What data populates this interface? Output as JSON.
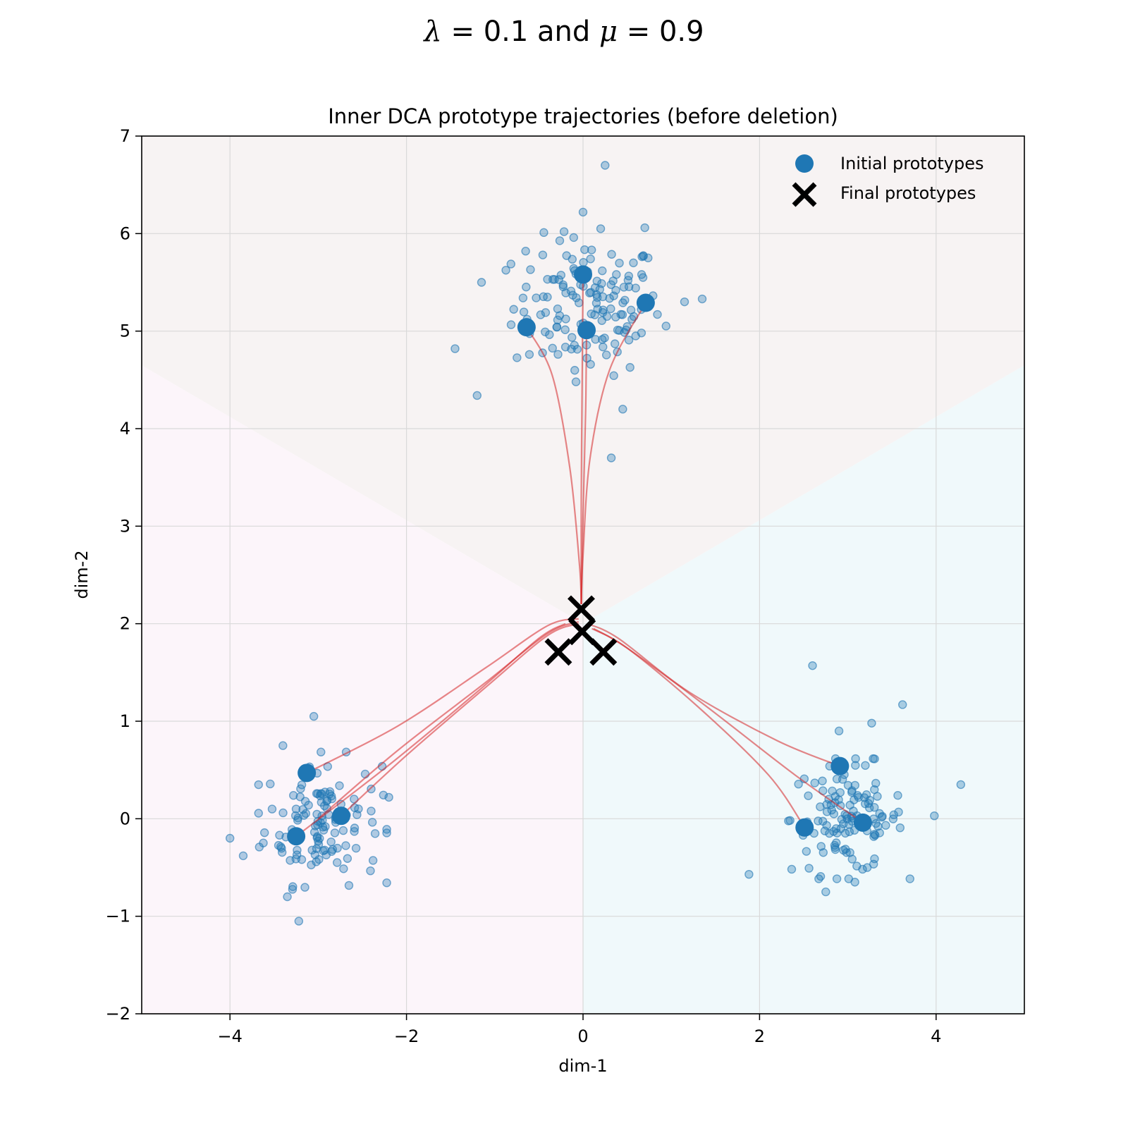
{
  "figure": {
    "suptitle": {
      "lambda_symbol": "λ",
      "lambda_value": "0.1",
      "connector": "and",
      "mu_symbol": "μ",
      "mu_value": "0.9"
    }
  },
  "chart_data": {
    "type": "scatter",
    "title": "Inner DCA prototype trajectories (before deletion)",
    "xlabel": "dim-1",
    "ylabel": "dim-2",
    "xlim": [
      -5,
      5
    ],
    "ylim": [
      -2,
      7
    ],
    "xticks": [
      -4,
      -2,
      0,
      2,
      4
    ],
    "xtick_labels": [
      "−4",
      "−2",
      "0",
      "2",
      "4"
    ],
    "yticks": [
      -2,
      -1,
      0,
      1,
      2,
      3,
      4,
      5,
      6,
      7
    ],
    "ytick_labels": [
      "−2",
      "−1",
      "0",
      "1",
      "2",
      "3",
      "4",
      "5",
      "6",
      "7"
    ],
    "grid": true,
    "legend_position": "top-right",
    "legend": [
      {
        "label": "Initial prototypes",
        "marker": "circle"
      },
      {
        "label": "Final prototypes",
        "marker": "x"
      }
    ],
    "colors": {
      "points": "#1f77b4",
      "prototypes": "#1f77b4",
      "final": "#000000",
      "trajectory": "#d62728",
      "region_top": "#f7f3f3",
      "region_left": "#fcf5fa",
      "region_right": "#f0f9fb",
      "grid": "#d9d9d9"
    },
    "region_center": [
      0,
      2
    ],
    "regions": [
      {
        "name": "top",
        "polygon": [
          [
            -5,
            4.65
          ],
          [
            0,
            2
          ],
          [
            5,
            4.65
          ],
          [
            5,
            7
          ],
          [
            -5,
            7
          ]
        ]
      },
      {
        "name": "left",
        "polygon": [
          [
            -5,
            -2
          ],
          [
            0,
            -2
          ],
          [
            0,
            2
          ],
          [
            -5,
            4.65
          ]
        ]
      },
      {
        "name": "right",
        "polygon": [
          [
            0,
            -2
          ],
          [
            5,
            -2
          ],
          [
            5,
            4.65
          ],
          [
            0,
            2
          ]
        ]
      }
    ],
    "clusters": [
      {
        "name": "top",
        "center": [
          0.05,
          5.25
        ],
        "spread": [
          0.42,
          0.35
        ],
        "count": 140,
        "outliers": [
          [
            0.25,
            6.7
          ],
          [
            0.0,
            6.22
          ],
          [
            0.2,
            6.05
          ],
          [
            0.7,
            6.06
          ],
          [
            -1.45,
            4.82
          ],
          [
            -1.2,
            4.34
          ],
          [
            0.45,
            4.2
          ],
          [
            0.32,
            3.7
          ],
          [
            1.35,
            5.33
          ],
          [
            1.15,
            5.3
          ],
          [
            -1.15,
            5.5
          ],
          [
            -0.65,
            5.82
          ]
        ]
      },
      {
        "name": "left",
        "center": [
          -2.95,
          -0.02
        ],
        "spread": [
          0.33,
          0.32
        ],
        "count": 120,
        "outliers": [
          [
            -3.05,
            1.05
          ],
          [
            -4.0,
            -0.2
          ],
          [
            -3.22,
            -1.05
          ],
          [
            -3.35,
            -0.8
          ],
          [
            -2.2,
            0.22
          ],
          [
            -3.85,
            -0.38
          ],
          [
            -3.4,
            0.75
          ]
        ]
      },
      {
        "name": "right",
        "center": [
          3.0,
          0.0
        ],
        "spread": [
          0.32,
          0.28
        ],
        "count": 120,
        "outliers": [
          [
            2.6,
            1.57
          ],
          [
            3.62,
            1.17
          ],
          [
            4.28,
            0.35
          ],
          [
            3.27,
            0.98
          ],
          [
            1.88,
            -0.57
          ],
          [
            2.9,
            0.9
          ],
          [
            3.98,
            0.03
          ],
          [
            2.75,
            -0.75
          ],
          [
            3.08,
            -0.65
          ]
        ]
      }
    ],
    "initial_prototypes": [
      [
        0.0,
        5.58
      ],
      [
        -0.64,
        5.04
      ],
      [
        0.04,
        5.01
      ],
      [
        0.71,
        5.29
      ],
      [
        -3.13,
        0.47
      ],
      [
        -2.74,
        0.03
      ],
      [
        -3.25,
        -0.18
      ],
      [
        2.91,
        0.54
      ],
      [
        2.51,
        -0.09
      ],
      [
        3.17,
        -0.04
      ]
    ],
    "final_prototypes": [
      [
        -0.02,
        2.15
      ],
      [
        -0.01,
        1.92
      ],
      [
        -0.28,
        1.71
      ],
      [
        0.23,
        1.71
      ]
    ],
    "trajectories": [
      [
        [
          -0.64,
          5.04
        ],
        [
          -0.35,
          4.55
        ],
        [
          -0.15,
          3.6
        ],
        [
          -0.04,
          2.6
        ],
        [
          -0.02,
          2.2
        ]
      ],
      [
        [
          0.0,
          5.58
        ],
        [
          -0.01,
          4.5
        ],
        [
          -0.02,
          3.3
        ],
        [
          -0.02,
          2.2
        ]
      ],
      [
        [
          0.04,
          5.01
        ],
        [
          0.03,
          4.2
        ],
        [
          0.0,
          3.1
        ],
        [
          -0.02,
          2.2
        ]
      ],
      [
        [
          0.71,
          5.29
        ],
        [
          0.3,
          4.6
        ],
        [
          0.08,
          3.7
        ],
        [
          0.0,
          2.7
        ],
        [
          -0.02,
          2.2
        ]
      ],
      [
        [
          -3.13,
          0.47
        ],
        [
          -2.1,
          0.95
        ],
        [
          -1.1,
          1.55
        ],
        [
          -0.4,
          1.98
        ],
        [
          -0.05,
          2.05
        ]
      ],
      [
        [
          -3.0,
          0.0
        ],
        [
          -2.1,
          0.7
        ],
        [
          -1.1,
          1.4
        ],
        [
          -0.4,
          1.9
        ],
        [
          -0.05,
          2.02
        ]
      ],
      [
        [
          -2.74,
          0.03
        ],
        [
          -2.0,
          0.65
        ],
        [
          -1.1,
          1.35
        ],
        [
          -0.4,
          1.88
        ],
        [
          -0.05,
          2.0
        ]
      ],
      [
        [
          -3.25,
          -0.18
        ],
        [
          -2.2,
          0.55
        ],
        [
          -1.2,
          1.3
        ],
        [
          -0.5,
          1.85
        ],
        [
          -0.2,
          2.0
        ]
      ],
      [
        [
          2.91,
          0.54
        ],
        [
          2.2,
          0.8
        ],
        [
          1.2,
          1.3
        ],
        [
          0.4,
          1.85
        ],
        [
          0.05,
          2.0
        ]
      ],
      [
        [
          2.51,
          -0.09
        ],
        [
          2.1,
          0.45
        ],
        [
          1.3,
          1.15
        ],
        [
          0.5,
          1.75
        ],
        [
          0.1,
          1.95
        ]
      ],
      [
        [
          3.17,
          -0.04
        ],
        [
          2.4,
          0.45
        ],
        [
          1.4,
          1.15
        ],
        [
          0.5,
          1.75
        ],
        [
          0.12,
          1.95
        ]
      ]
    ]
  }
}
